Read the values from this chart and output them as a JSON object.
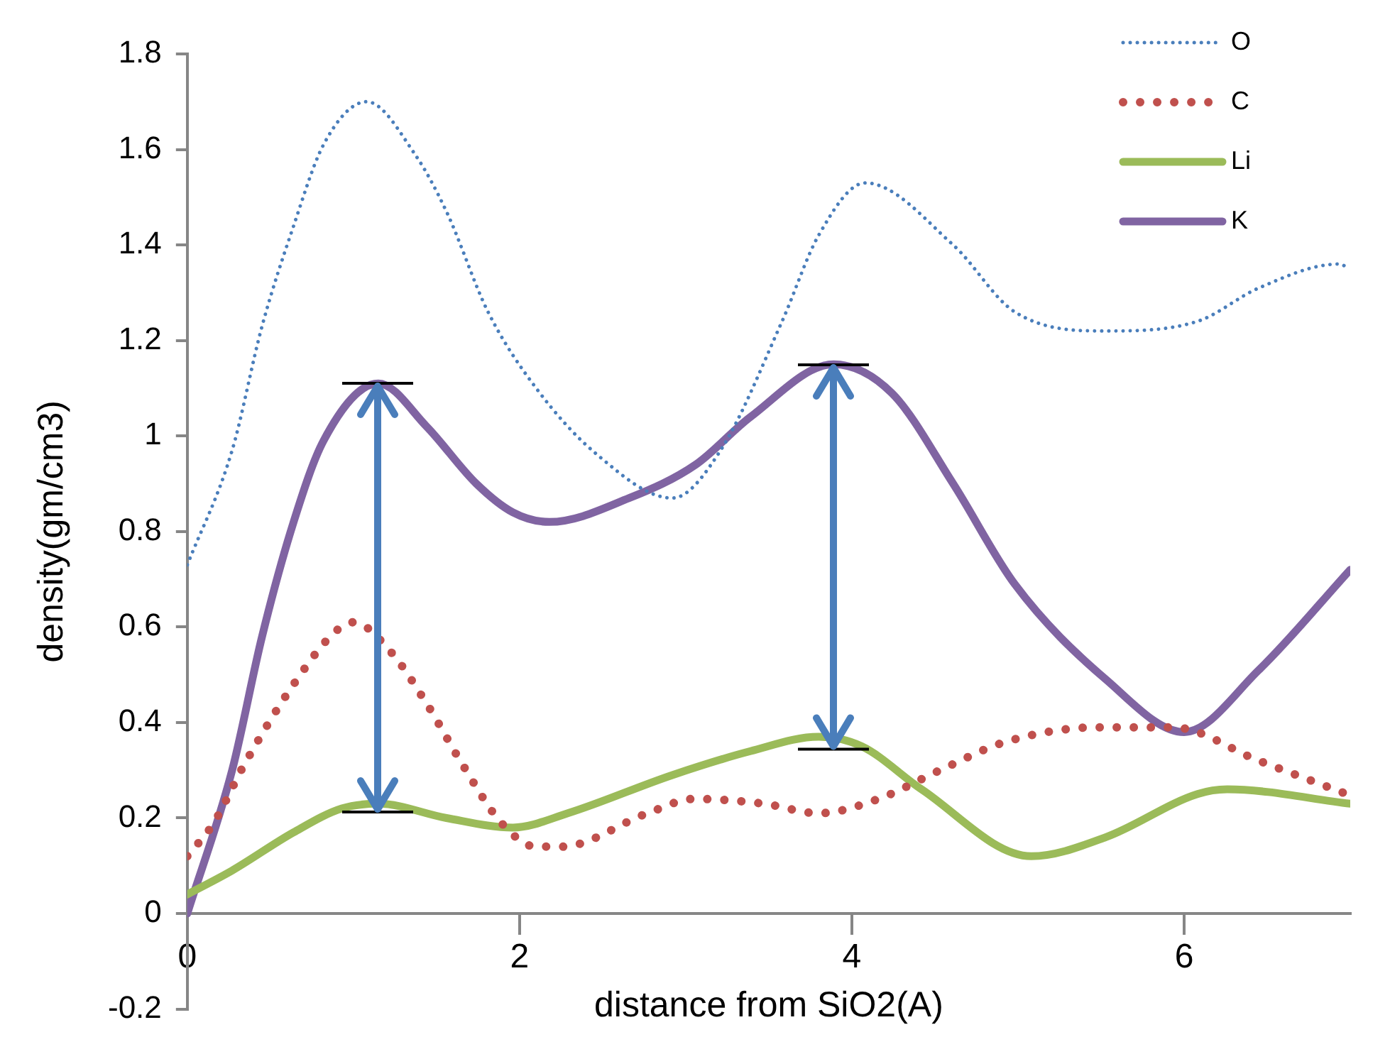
{
  "chart_data": {
    "type": "line",
    "xlabel": "distance from SiO2(A)",
    "ylabel": "density(gm/cm3)",
    "xlim": [
      0,
      7
    ],
    "xticks": [
      0,
      2,
      4,
      6
    ],
    "ylim": [
      -0.2,
      1.8
    ],
    "yticks": [
      -0.2,
      0,
      0.2,
      0.4,
      0.6,
      0.8,
      1,
      1.2,
      1.4,
      1.6,
      1.8
    ],
    "grid": false,
    "legend": "top right",
    "marker": "none",
    "series": [
      {
        "name": "O",
        "color": "#4a7ebb",
        "line_style": "dotted",
        "x": [
          0,
          0.27,
          0.45,
          0.64,
          0.82,
          1.08,
          1.37,
          1.56,
          1.81,
          2.1,
          2.47,
          2.92,
          3.21,
          3.58,
          3.8,
          4.08,
          4.61,
          4.98,
          5.53,
          6.08,
          6.45,
          6.93,
          7
        ],
        "values": [
          0.73,
          0.97,
          1.23,
          1.44,
          1.61,
          1.7,
          1.59,
          1.47,
          1.26,
          1.1,
          0.96,
          0.87,
          0.97,
          1.24,
          1.42,
          1.53,
          1.4,
          1.26,
          1.22,
          1.24,
          1.31,
          1.36,
          1.35
        ]
      },
      {
        "name": "C",
        "color": "#c0504d",
        "line_style": "dotted",
        "x": [
          0,
          0.16,
          0.34,
          0.64,
          0.89,
          1.0,
          1.22,
          1.44,
          1.66,
          1.89,
          2.1,
          2.25,
          2.77,
          3.05,
          3.47,
          3.8,
          4.16,
          4.53,
          4.93,
          5.49,
          5.93,
          6.45,
          6.98
        ],
        "values": [
          0.12,
          0.19,
          0.31,
          0.48,
          0.59,
          0.61,
          0.55,
          0.44,
          0.31,
          0.19,
          0.14,
          0.14,
          0.21,
          0.24,
          0.23,
          0.21,
          0.24,
          0.3,
          0.36,
          0.39,
          0.39,
          0.32,
          0.25
        ]
      },
      {
        "name": "Li",
        "color": "#9bbb59",
        "line_style": "solid",
        "x": [
          0,
          0.27,
          0.64,
          0.93,
          1.15,
          1.56,
          1.96,
          2.29,
          2.92,
          3.39,
          3.8,
          4.06,
          4.42,
          5.08,
          5.53,
          6.08,
          6.26,
          7
        ],
        "values": [
          0.04,
          0.09,
          0.17,
          0.22,
          0.23,
          0.2,
          0.18,
          0.21,
          0.29,
          0.34,
          0.37,
          0.35,
          0.26,
          0.12,
          0.16,
          0.25,
          0.26,
          0.23
        ]
      },
      {
        "name": "K",
        "color": "#8064a2",
        "line_style": "solid",
        "x": [
          0,
          0.27,
          0.45,
          0.64,
          0.82,
          1.15,
          1.44,
          1.74,
          1.96,
          2.18,
          2.66,
          3.06,
          3.39,
          3.89,
          4.24,
          4.61,
          4.98,
          5.53,
          6.0,
          6.45,
          7
        ],
        "values": [
          0,
          0.3,
          0.58,
          0.82,
          0.99,
          1.11,
          1.02,
          0.9,
          0.84,
          0.82,
          0.87,
          0.94,
          1.04,
          1.15,
          1.09,
          0.9,
          0.69,
          0.49,
          0.38,
          0.51,
          0.72
        ]
      }
    ]
  }
}
